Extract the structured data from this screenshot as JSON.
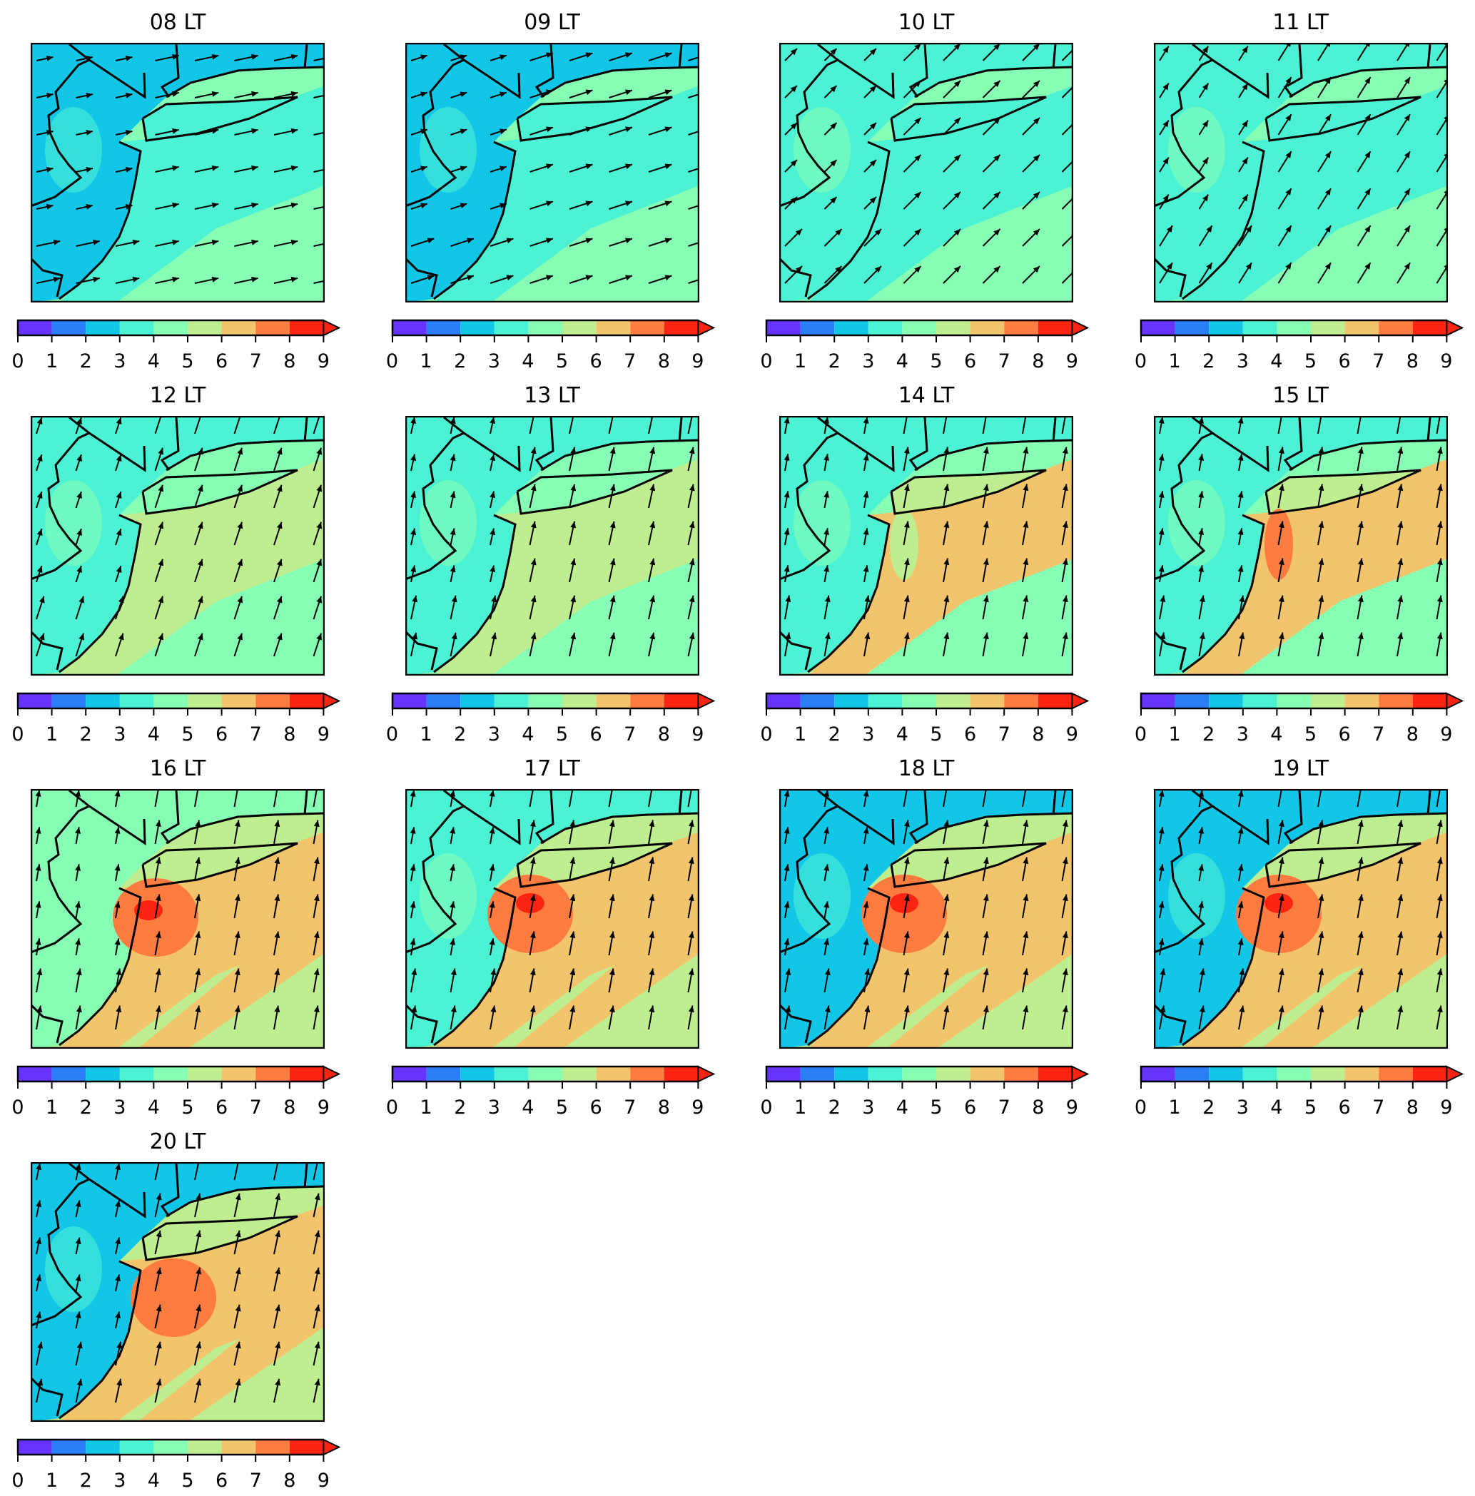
{
  "figure": {
    "panels": [
      {
        "title": "08 LT"
      },
      {
        "title": "09 LT"
      },
      {
        "title": "10 LT"
      },
      {
        "title": "11 LT"
      },
      {
        "title": "12 LT"
      },
      {
        "title": "13 LT"
      },
      {
        "title": "14 LT"
      },
      {
        "title": "15 LT"
      },
      {
        "title": "16 LT"
      },
      {
        "title": "17 LT"
      },
      {
        "title": "18 LT"
      },
      {
        "title": "19 LT"
      },
      {
        "title": "20 LT"
      }
    ],
    "colorbar": {
      "ticks": [
        "0",
        "1",
        "2",
        "3",
        "4",
        "5",
        "6",
        "7",
        "8",
        "9"
      ],
      "colors": [
        "#6633ff",
        "#2a7ff8",
        "#12c6e8",
        "#4cf2d4",
        "#86ffb4",
        "#bfee90",
        "#f2c46c",
        "#ff7c40",
        "#ff2412"
      ],
      "extend": "max"
    },
    "vector_overlay": "wind-arrows",
    "boundary_color": "#000000"
  }
}
